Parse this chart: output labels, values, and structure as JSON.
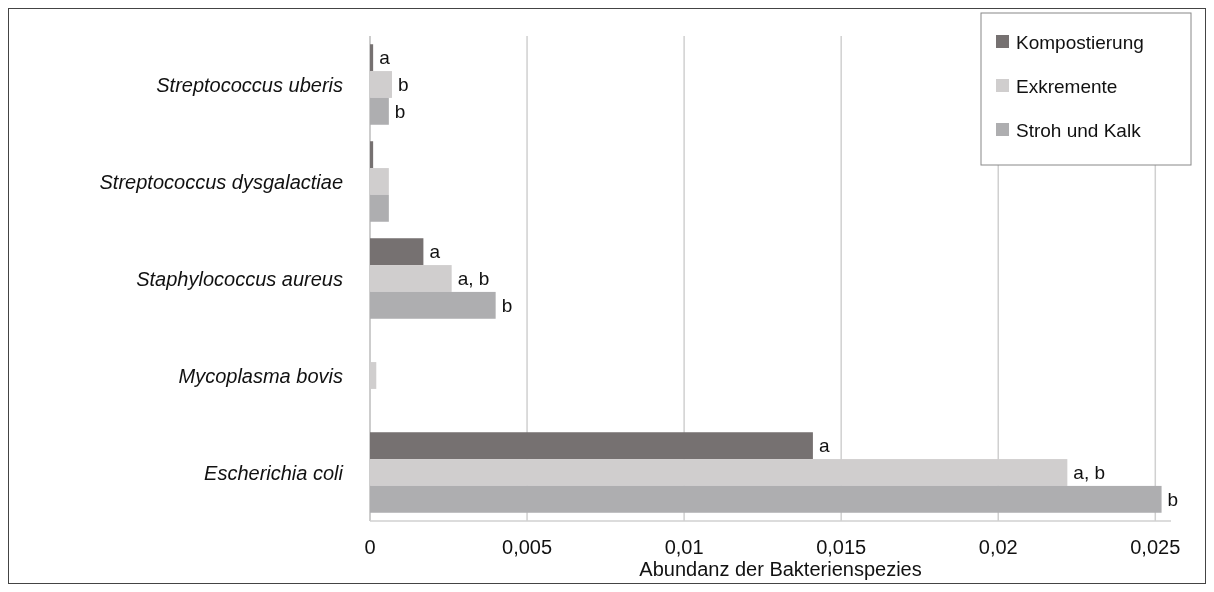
{
  "chart_data": {
    "type": "bar",
    "orientation": "horizontal",
    "xlabel": "Abundanz der Bakterienspezies",
    "categories": [
      "Streptococcus uberis",
      "Streptococcus dysgalactiae",
      "Staphylococcus aureus",
      "Mycoplasma bovis",
      "Escherichia coli"
    ],
    "series": [
      {
        "name": "Kompostierung",
        "color": "#767171",
        "values": [
          0.0001,
          0.0001,
          0.0017,
          0,
          0.0141
        ],
        "value_labels": [
          "a",
          null,
          "a",
          null,
          "a"
        ]
      },
      {
        "name": "Exkremente",
        "color": "#d0cece",
        "values": [
          0.0007,
          0.0006,
          0.0026,
          0.0002,
          0.0222
        ],
        "value_labels": [
          "b",
          null,
          "a, b",
          null,
          "a, b"
        ]
      },
      {
        "name": "Stroh und Kalk",
        "color": "#aeaeb0",
        "values": [
          0.0006,
          0.0006,
          0.004,
          0,
          0.0252
        ],
        "value_labels": [
          "b",
          null,
          "b",
          null,
          "b"
        ]
      }
    ],
    "xlim": [
      0,
      0.0255
    ],
    "xticks": [
      0,
      {
        "value": 0.005,
        "label": "0,005"
      },
      {
        "value": 0.01,
        "label": "0,01"
      },
      {
        "value": 0.015,
        "label": "0,015"
      },
      {
        "value": 0.02,
        "label": "0,02"
      },
      {
        "value": 0.025,
        "label": "0,025"
      }
    ],
    "grid": "x",
    "legend": "top right"
  }
}
